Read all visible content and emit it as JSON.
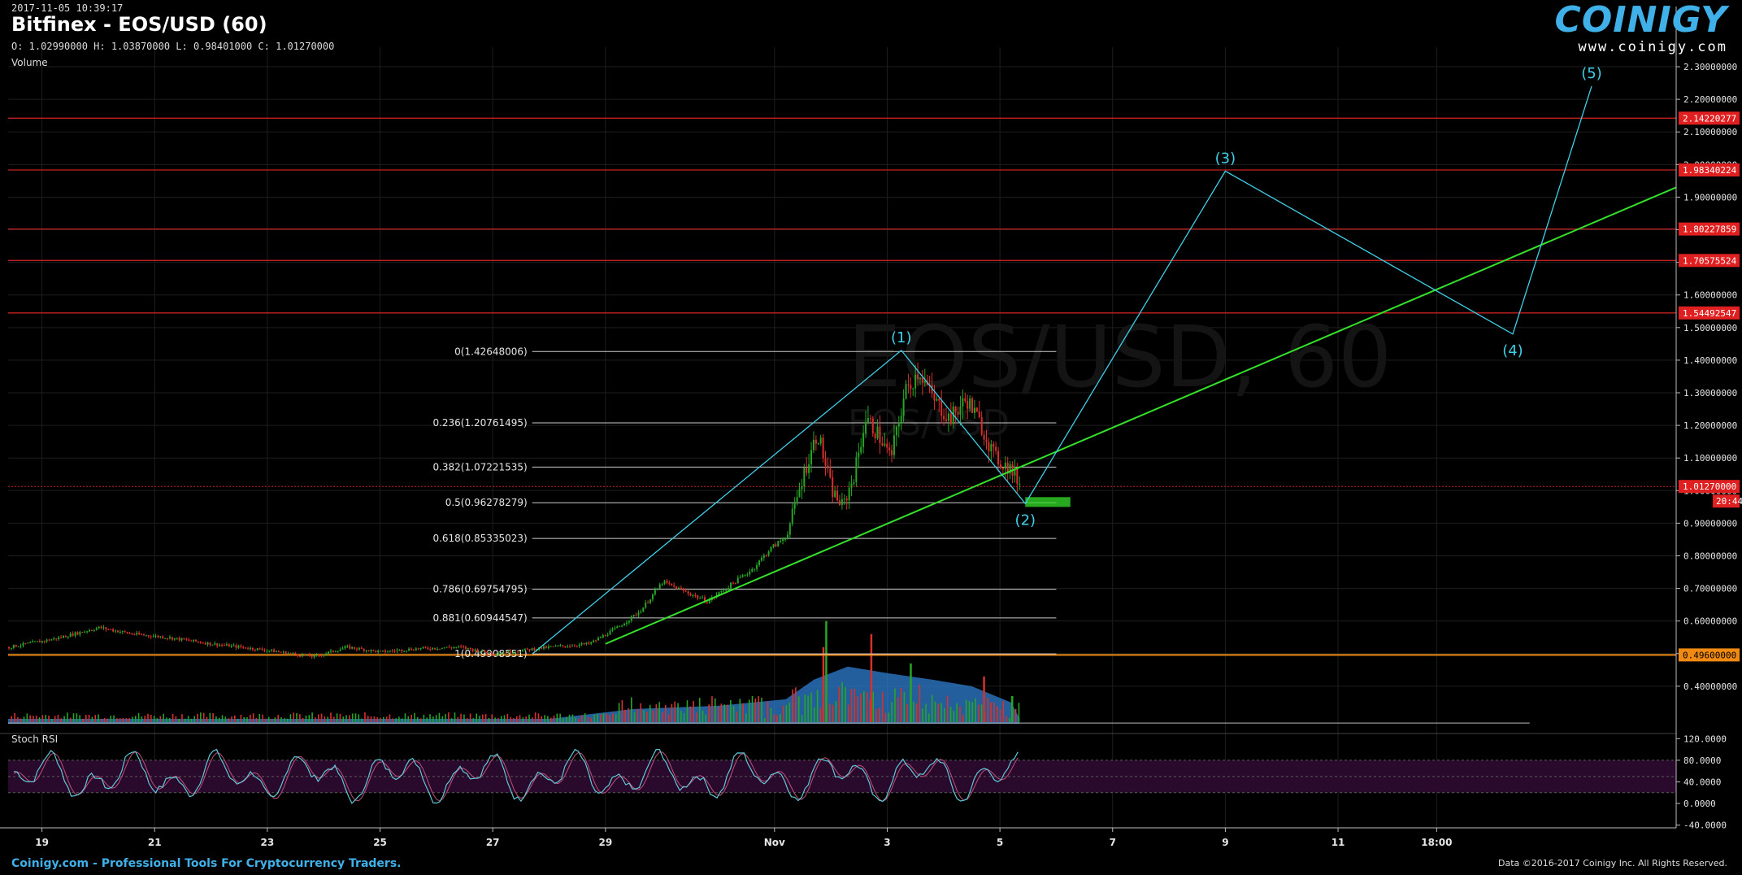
{
  "header": {
    "timestamp": "2017-11-05 10:39:17",
    "title": "Bitfinex - EOS/USD (60)",
    "ohlc": "O: 1.02990000 H: 1.03870000 L: 0.98401000 C: 1.01270000",
    "volume_label": "Volume",
    "stoch_label": "Stoch RSI"
  },
  "logo": {
    "brand": "COINIGY",
    "url": "www.coinigy.com"
  },
  "footer": {
    "left": "Coinigy.com - Professional Tools For Cryptocurrency Traders.",
    "right": "Data ©2016-2017 Coinigy Inc. All Rights Reserved."
  },
  "watermark": {
    "main": "EOS/USD, 60",
    "sub": "EOS/USD"
  },
  "colors": {
    "background": "#000000",
    "grid": "#1e1e1e",
    "up": "#26a526",
    "down": "#d9302c",
    "wave": "#3fd0e8",
    "trend": "#35e02a",
    "resistance": "#c62020",
    "support": "#f08a12",
    "fib": "#cccccc",
    "volume_area": "#2f7fd0",
    "stoch_band": "#2a0a2c",
    "stoch_line": "#5fc8d8",
    "brand": "#3fb1e8"
  },
  "chart_data": {
    "type": "candlestick",
    "pair": "EOS/USD",
    "exchange": "Bitfinex",
    "interval": "60",
    "ylim": [
      0.26,
      2.36
    ],
    "price_ticks": [
      2.3,
      2.2,
      2.1,
      2.0,
      1.9,
      1.8,
      1.7,
      1.6,
      1.5,
      1.4,
      1.3,
      1.2,
      1.1,
      1.0,
      0.9,
      0.8,
      0.7,
      0.6,
      0.5,
      0.4
    ],
    "price_tick_labels": [
      "2.30000000",
      "2.20000000",
      "2.10000000",
      "2.00000000",
      "1.90000000",
      "1.80000000",
      "1.70000000",
      "1.60000000",
      "1.50000000",
      "1.40000000",
      "1.30000000",
      "1.20000000",
      "1.10000000",
      "1.00000000",
      "0.90000000",
      "0.80000000",
      "0.70000000",
      "0.60000000",
      "0.50000000",
      "0.40000000"
    ],
    "x_day_range": [
      18.4,
      41.8
    ],
    "x_ticks": [
      {
        "day": 19,
        "label": "19"
      },
      {
        "day": 21,
        "label": "21"
      },
      {
        "day": 23,
        "label": "23"
      },
      {
        "day": 25,
        "label": "25"
      },
      {
        "day": 27,
        "label": "27"
      },
      {
        "day": 29,
        "label": "29"
      },
      {
        "day": 32,
        "label": "Nov"
      },
      {
        "day": 34,
        "label": "3"
      },
      {
        "day": 36,
        "label": "5"
      },
      {
        "day": 38,
        "label": "7"
      },
      {
        "day": 40,
        "label": "9"
      },
      {
        "day": 42,
        "label": "11"
      },
      {
        "day": 43.75,
        "label": "18:00"
      }
    ],
    "price_anchors": [
      [
        18.4,
        0.52
      ],
      [
        19.2,
        0.545
      ],
      [
        20.0,
        0.58
      ],
      [
        20.6,
        0.56
      ],
      [
        21.2,
        0.55
      ],
      [
        22.0,
        0.53
      ],
      [
        23.0,
        0.51
      ],
      [
        23.8,
        0.49
      ],
      [
        24.4,
        0.52
      ],
      [
        25.0,
        0.505
      ],
      [
        25.6,
        0.515
      ],
      [
        26.4,
        0.52
      ],
      [
        27.0,
        0.5
      ],
      [
        27.5,
        0.51
      ],
      [
        28.0,
        0.52
      ],
      [
        28.7,
        0.53
      ],
      [
        29.2,
        0.58
      ],
      [
        29.6,
        0.63
      ],
      [
        30.0,
        0.72
      ],
      [
        30.4,
        0.69
      ],
      [
        30.8,
        0.66
      ],
      [
        31.2,
        0.71
      ],
      [
        31.6,
        0.76
      ],
      [
        31.9,
        0.82
      ],
      [
        32.2,
        0.86
      ],
      [
        32.5,
        1.05
      ],
      [
        32.75,
        1.18
      ],
      [
        33.0,
        1.0
      ],
      [
        33.2,
        0.95
      ],
      [
        33.4,
        1.05
      ],
      [
        33.6,
        1.22
      ],
      [
        33.8,
        1.18
      ],
      [
        34.05,
        1.1
      ],
      [
        34.3,
        1.3
      ],
      [
        34.55,
        1.37
      ],
      [
        34.8,
        1.28
      ],
      [
        35.1,
        1.22
      ],
      [
        35.4,
        1.28
      ],
      [
        35.65,
        1.2
      ],
      [
        35.9,
        1.1
      ],
      [
        36.15,
        1.07
      ],
      [
        36.35,
        1.02
      ]
    ],
    "volume_area": [
      [
        18.4,
        0.3
      ],
      [
        26.0,
        0.3
      ],
      [
        28.0,
        0.3
      ],
      [
        29.5,
        0.33
      ],
      [
        31.0,
        0.34
      ],
      [
        32.2,
        0.36
      ],
      [
        32.7,
        0.42
      ],
      [
        33.3,
        0.46
      ],
      [
        34.0,
        0.44
      ],
      [
        34.8,
        0.42
      ],
      [
        35.5,
        0.4
      ],
      [
        36.2,
        0.35
      ],
      [
        36.35,
        0.3
      ]
    ],
    "volume_spikes": [
      [
        32.85,
        0.52
      ],
      [
        32.9,
        0.6
      ],
      [
        33.7,
        0.56
      ],
      [
        34.4,
        0.47
      ],
      [
        35.7,
        0.43
      ],
      [
        36.2,
        0.37
      ]
    ],
    "resistance_levels": [
      {
        "value": 2.14220277,
        "label": "2.14220277"
      },
      {
        "value": 1.98340224,
        "label": "1.98340224"
      },
      {
        "value": 1.80227859,
        "label": "1.80227859"
      },
      {
        "value": 1.70575524,
        "label": "1.70575524"
      },
      {
        "value": 1.54492547,
        "label": "1.54492547"
      }
    ],
    "current_price": {
      "value": 1.0127,
      "label": "1.01270000",
      "countdown": "20:44"
    },
    "support_level": {
      "value": 0.496,
      "label": "0.49600000"
    },
    "fibonacci": {
      "x_range": [
        27.7,
        37.0
      ],
      "levels": [
        {
          "value": 1.42648006,
          "label": "0(1.42648006)"
        },
        {
          "value": 1.20761495,
          "label": "0.236(1.20761495)"
        },
        {
          "value": 1.07221535,
          "label": "0.382(1.07221535)"
        },
        {
          "value": 0.96278279,
          "label": "0.5(0.96278279)"
        },
        {
          "value": 0.85335023,
          "label": "0.618(0.85335023)"
        },
        {
          "value": 0.69754795,
          "label": "0.786(0.69754795)"
        },
        {
          "value": 0.60944547,
          "label": "0.881(0.60944547)"
        },
        {
          "value": 0.49908551,
          "label": "1(0.49908551)"
        }
      ]
    },
    "elliott_wave": {
      "points": [
        {
          "day": 27.7,
          "price": 0.499,
          "label": ""
        },
        {
          "day": 34.25,
          "price": 1.43,
          "label": "(1)"
        },
        {
          "day": 36.45,
          "price": 0.96,
          "label": "(2)"
        },
        {
          "day": 40.0,
          "price": 1.98,
          "label": "(3)"
        },
        {
          "day": 45.1,
          "price": 1.48,
          "label": "(4)"
        },
        {
          "day": 46.5,
          "price": 2.24,
          "label": "(5)"
        }
      ]
    },
    "trendline": {
      "from": [
        29.0,
        0.53
      ],
      "to": [
        48.0,
        1.93
      ]
    },
    "target_box": {
      "day_from": 36.45,
      "day_to": 37.25,
      "price_from": 0.95,
      "price_to": 0.98
    },
    "stoch_rsi": {
      "ylim": [
        -45,
        125
      ],
      "ticks": [
        120,
        80,
        40,
        0,
        -40
      ],
      "tick_labels": [
        "120.0000",
        "80.0000",
        "40.0000",
        "0.0000",
        "-40.0000"
      ],
      "overbought": 80,
      "oversold": 20
    }
  }
}
